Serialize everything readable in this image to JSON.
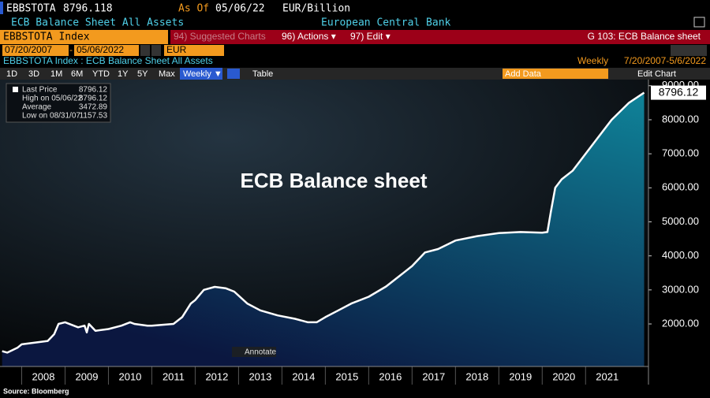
{
  "header": {
    "ticker": "EBBSTOTA",
    "price": "8796.118",
    "as_of_label": "As Of",
    "as_of_date": "05/06/22",
    "units": "EUR/Billion",
    "description": "ECB Balance Sheet All Assets",
    "source_name": "European Central Bank"
  },
  "toolbar": {
    "security": "EBBSTOTA Index",
    "suggested": "94) Suggested Charts",
    "actions": "96) Actions ▾",
    "edit": "97) Edit ▾",
    "page": "G 103: ECB Balance sheet"
  },
  "range": {
    "start": "07/20/2007",
    "end": "05/06/2022",
    "currency": "EUR"
  },
  "chart_header": {
    "title": "EBBSTOTA Index : ECB Balance Sheet All Assets",
    "frequency": "Weekly",
    "period": "7/20/2007-5/6/2022"
  },
  "controls": {
    "periods": [
      "1D",
      "3D",
      "1M",
      "6M",
      "YTD",
      "1Y",
      "5Y",
      "Max"
    ],
    "frequency": "Weekly ▼",
    "table": "Table",
    "add_data": "Add Data",
    "edit_chart": "Edit Chart"
  },
  "legend": {
    "rows": [
      [
        "Last Price",
        "8796.12"
      ],
      [
        "High on 05/06/22",
        "8796.12"
      ],
      [
        "Average",
        "3472.89"
      ],
      [
        "Low on 08/31/07",
        "1157.53"
      ]
    ]
  },
  "annotate": "Annotate",
  "footer": "Source: Bloomberg",
  "chart_data": {
    "type": "area",
    "annotation": "ECB Balance sheet",
    "last_value_label": "8796.12",
    "x": [
      2007.55,
      2007.67,
      2007.9,
      2008.0,
      2008.3,
      2008.6,
      2008.75,
      2008.85,
      2009.0,
      2009.3,
      2009.45,
      2009.5,
      2009.55,
      2009.7,
      2010.0,
      2010.3,
      2010.5,
      2010.6,
      2010.9,
      2011.0,
      2011.5,
      2011.7,
      2011.9,
      2012.0,
      2012.2,
      2012.45,
      2012.7,
      2012.9,
      2013.2,
      2013.5,
      2013.9,
      2014.3,
      2014.6,
      2014.8,
      2015.0,
      2015.3,
      2015.6,
      2016.0,
      2016.4,
      2016.8,
      2017.0,
      2017.3,
      2017.6,
      2018.0,
      2018.5,
      2019.0,
      2019.5,
      2020.0,
      2020.12,
      2020.2,
      2020.3,
      2020.45,
      2020.7,
      2021.0,
      2021.3,
      2021.6,
      2022.0,
      2022.35
    ],
    "values": [
      1200,
      1157.53,
      1300,
      1400,
      1450,
      1500,
      1700,
      2000,
      2050,
      1900,
      1950,
      1750,
      2000,
      1800,
      1850,
      1950,
      2050,
      2000,
      1950,
      1950,
      2000,
      2200,
      2600,
      2700,
      3000,
      3090,
      3050,
      2950,
      2600,
      2400,
      2250,
      2150,
      2050,
      2050,
      2200,
      2400,
      2600,
      2800,
      3100,
      3500,
      3700,
      4100,
      4200,
      4450,
      4580,
      4670,
      4700,
      4680,
      4700,
      5300,
      6000,
      6250,
      6500,
      7000,
      7500,
      8000,
      8500,
      8796.12
    ],
    "color": "#ffffff",
    "fill_top": "#0f8399",
    "fill_bottom": "#0b1740",
    "xlim": [
      2007.5,
      2022.45
    ],
    "xticks": [
      2008,
      2009,
      2010,
      2011,
      2012,
      2013,
      2014,
      2015,
      2016,
      2017,
      2018,
      2019,
      2020,
      2021
    ],
    "ylim": [
      750,
      9180
    ],
    "yticks": [
      {
        "value": 2000,
        "label": "2000.00"
      },
      {
        "value": 3000,
        "label": "3000.00"
      },
      {
        "value": 4000,
        "label": "4000.00"
      },
      {
        "value": 5000,
        "label": "5000.00"
      },
      {
        "value": 6000,
        "label": "6000.00"
      },
      {
        "value": 7000,
        "label": "7000.00"
      },
      {
        "value": 8000,
        "label": "8000.00"
      },
      {
        "value": 9000,
        "label": "9000.00"
      }
    ]
  }
}
